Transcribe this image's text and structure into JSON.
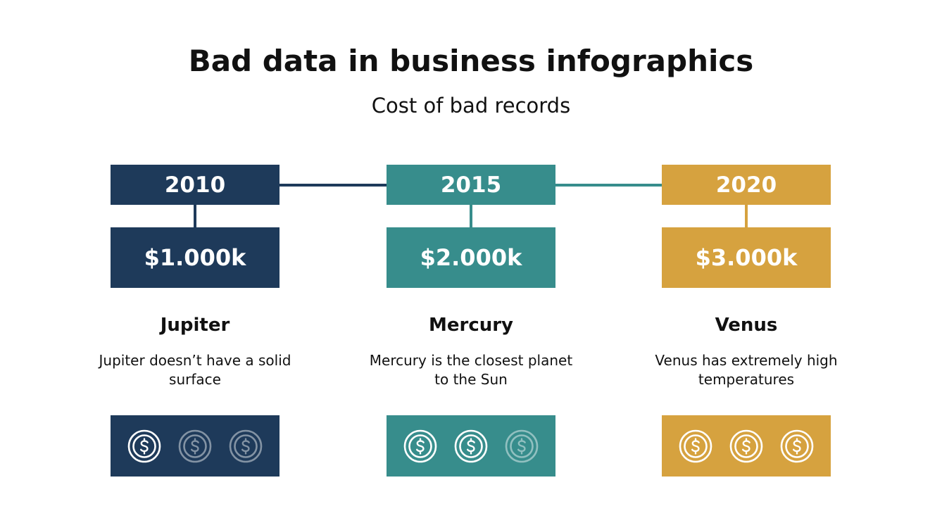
{
  "title": "Bad data in business infographics",
  "subtitle": "Cost of bad records",
  "colors": {
    "navy": "#1e3a5a",
    "teal": "#378d8c",
    "gold": "#d6a23f"
  },
  "milestones": [
    {
      "year": "2010",
      "cost": "$1.000k",
      "name": "Jupiter",
      "description": "Jupiter doesn’t have a solid surface",
      "icon": "dollar-coin-icon",
      "coins_total": 3,
      "coins_highlighted": 1
    },
    {
      "year": "2015",
      "cost": "$2.000k",
      "name": "Mercury",
      "description": "Mercury is the closest planet to the Sun",
      "icon": "dollar-coin-icon",
      "coins_total": 3,
      "coins_highlighted": 2
    },
    {
      "year": "2020",
      "cost": "$3.000k",
      "name": "Venus",
      "description": "Venus has extremely high temperatures",
      "icon": "dollar-coin-icon",
      "coins_total": 3,
      "coins_highlighted": 3
    }
  ]
}
